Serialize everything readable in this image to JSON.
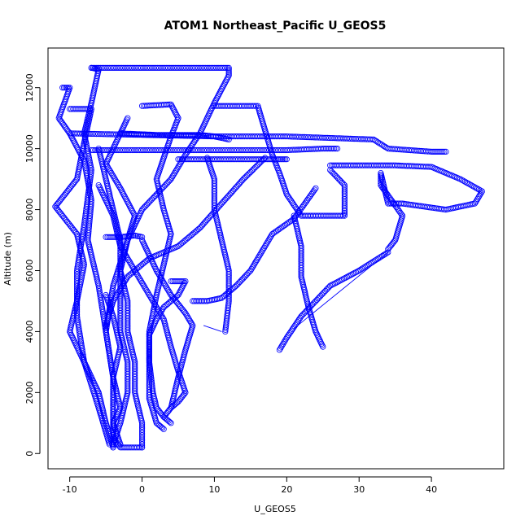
{
  "chart_data": {
    "type": "scatter",
    "title": "ATOM1 Northeast_Pacific U_GEOS5",
    "xlabel": "U_GEOS5",
    "ylabel": "Altitude (m)",
    "xlim": [
      -13,
      50
    ],
    "ylim": [
      -500,
      13300
    ],
    "xticks": [
      -10,
      0,
      10,
      20,
      30,
      40
    ],
    "yticks": [
      0,
      2000,
      4000,
      6000,
      8000,
      10000,
      12000
    ],
    "grid": false,
    "legend": "none",
    "marker": "open-circle",
    "color": "#0000ff",
    "series": [
      {
        "points": [
          [
            -11,
            12000
          ],
          [
            -10,
            12000
          ],
          [
            -11.5,
            11000
          ],
          [
            -10,
            10500
          ],
          [
            -8,
            9600
          ],
          [
            -7,
            8300
          ],
          [
            -7.5,
            7000
          ],
          [
            -6,
            5500
          ],
          [
            -5,
            4000
          ],
          [
            -4,
            2500
          ],
          [
            -4,
            1000
          ],
          [
            -4,
            200
          ]
        ]
      },
      {
        "points": [
          [
            -7,
            12650
          ],
          [
            -6,
            12600
          ],
          [
            -7,
            11500
          ],
          [
            -8,
            10500
          ],
          [
            -7,
            9300
          ],
          [
            -8,
            7500
          ],
          [
            -9,
            6000
          ],
          [
            -9,
            4500
          ],
          [
            -8,
            3000
          ],
          [
            -6,
            1500
          ],
          [
            -4.5,
            300
          ]
        ]
      },
      {
        "points": [
          [
            -7,
            12650
          ],
          [
            12,
            12650
          ],
          [
            12,
            12400
          ],
          [
            10,
            11500
          ],
          [
            8,
            10500
          ],
          [
            6,
            9800
          ],
          [
            4,
            9000
          ],
          [
            0,
            8000
          ],
          [
            -2,
            7000
          ],
          [
            -4,
            5500
          ],
          [
            -5,
            4000
          ],
          [
            -4,
            2500
          ],
          [
            -4,
            1000
          ],
          [
            -3,
            300
          ]
        ]
      },
      {
        "points": [
          [
            -10,
            11300
          ],
          [
            -7,
            11300
          ],
          [
            -8,
            10200
          ],
          [
            -9,
            9000
          ],
          [
            -11,
            8400
          ],
          [
            -12,
            8100
          ],
          [
            -9,
            7200
          ],
          [
            -8,
            6200
          ],
          [
            -9,
            5000
          ],
          [
            -10,
            4000
          ],
          [
            -8,
            3000
          ],
          [
            -6,
            2000
          ],
          [
            -5,
            1000
          ],
          [
            -4,
            200
          ]
        ]
      },
      {
        "points": [
          [
            -10,
            10500
          ],
          [
            10,
            10400
          ],
          [
            20,
            10400
          ],
          [
            32,
            10300
          ],
          [
            34,
            10000
          ],
          [
            40,
            9900
          ],
          [
            42,
            9900
          ]
        ]
      },
      {
        "points": [
          [
            -7,
            9950
          ],
          [
            10,
            9950
          ],
          [
            20,
            9950
          ],
          [
            25,
            10000
          ],
          [
            27,
            10000
          ]
        ]
      },
      {
        "points": [
          [
            5,
            9650
          ],
          [
            15,
            9650
          ],
          [
            19,
            9650
          ],
          [
            20,
            9650
          ]
        ]
      },
      {
        "points": [
          [
            -3,
            10500
          ],
          [
            2,
            10450
          ],
          [
            8,
            10450
          ],
          [
            10,
            10400
          ],
          [
            12,
            10300
          ]
        ]
      },
      {
        "points": [
          [
            26,
            9450
          ],
          [
            35,
            9450
          ],
          [
            40,
            9400
          ],
          [
            44,
            9000
          ],
          [
            47,
            8600
          ],
          [
            46,
            8200
          ],
          [
            42,
            8000
          ],
          [
            36,
            8200
          ],
          [
            34,
            8200
          ],
          [
            33,
            9200
          ],
          [
            33,
            8800
          ],
          [
            36,
            7800
          ],
          [
            35,
            7000
          ],
          [
            34,
            6700
          ]
        ]
      },
      {
        "points": [
          [
            34,
            6600
          ],
          [
            30,
            6000
          ],
          [
            26,
            5500
          ],
          [
            22,
            4500
          ],
          [
            20,
            3800
          ],
          [
            19,
            3400
          ]
        ]
      },
      {
        "points": [
          [
            10,
            11400
          ],
          [
            16,
            11400
          ],
          [
            17,
            10600
          ],
          [
            18,
            9800
          ],
          [
            19,
            9200
          ],
          [
            20,
            8500
          ],
          [
            22,
            7800
          ],
          [
            25,
            7800
          ],
          [
            28,
            7800
          ],
          [
            28,
            8000
          ],
          [
            28,
            8800
          ],
          [
            26,
            9300
          ]
        ]
      },
      {
        "points": [
          [
            0,
            11400
          ],
          [
            4,
            11450
          ],
          [
            5,
            11000
          ],
          [
            4,
            10400
          ],
          [
            3,
            9700
          ],
          [
            2,
            9000
          ],
          [
            3,
            8000
          ],
          [
            4,
            7200
          ],
          [
            3,
            6200
          ],
          [
            2,
            5200
          ],
          [
            1,
            4000
          ],
          [
            1,
            2800
          ],
          [
            1,
            1800
          ],
          [
            2,
            1000
          ],
          [
            3,
            800
          ]
        ]
      },
      {
        "points": [
          [
            17,
            9700
          ],
          [
            14,
            9000
          ],
          [
            11,
            8200
          ],
          [
            8,
            7400
          ],
          [
            5,
            6800
          ],
          [
            1,
            6400
          ],
          [
            -2,
            5800
          ],
          [
            -4,
            5000
          ],
          [
            -5,
            4200
          ]
        ]
      },
      {
        "points": [
          [
            -2,
            11000
          ],
          [
            -4,
            10000
          ],
          [
            -5,
            9500
          ],
          [
            -3,
            8700
          ],
          [
            -1,
            7800
          ],
          [
            -2,
            7000
          ],
          [
            -3,
            6000
          ],
          [
            -3,
            5000
          ],
          [
            -3,
            4000
          ],
          [
            -2,
            3000
          ],
          [
            -2,
            2000
          ],
          [
            -3,
            1000
          ],
          [
            -4,
            300
          ]
        ]
      },
      {
        "points": [
          [
            0,
            7000
          ],
          [
            2,
            6000
          ],
          [
            4,
            5200
          ],
          [
            6,
            4600
          ],
          [
            7,
            4200
          ],
          [
            6,
            3400
          ],
          [
            5,
            2500
          ],
          [
            4,
            1500
          ],
          [
            3,
            1200
          ],
          [
            4,
            1000
          ]
        ]
      },
      {
        "points": [
          [
            7,
            5000
          ],
          [
            9,
            5000
          ],
          [
            11,
            5100
          ],
          [
            13,
            5500
          ],
          [
            15,
            6000
          ],
          [
            18,
            7200
          ],
          [
            21,
            7700
          ],
          [
            24,
            8700
          ]
        ]
      },
      {
        "points": [
          [
            21,
            7800
          ],
          [
            22,
            6800
          ],
          [
            22,
            5800
          ],
          [
            23,
            4800
          ],
          [
            24,
            4000
          ],
          [
            25,
            3500
          ]
        ]
      },
      {
        "points": [
          [
            9,
            9700
          ],
          [
            10,
            9000
          ],
          [
            10,
            8000
          ],
          [
            11,
            7000
          ],
          [
            12,
            6000
          ],
          [
            12,
            5000
          ],
          [
            11.5,
            4000
          ]
        ]
      },
      {
        "points": [
          [
            -6,
            10000
          ],
          [
            -5,
            9000
          ],
          [
            -4,
            8000
          ],
          [
            -3,
            7000
          ],
          [
            -3,
            6000
          ],
          [
            -2,
            5000
          ],
          [
            -2,
            4000
          ],
          [
            -1,
            3000
          ],
          [
            -1,
            2000
          ],
          [
            0,
            1000
          ],
          [
            0,
            200
          ]
        ]
      },
      {
        "points": [
          [
            0,
            200
          ],
          [
            -3,
            200
          ],
          [
            -4,
            500
          ],
          [
            -4,
            1000
          ],
          [
            -3,
            1500
          ],
          [
            -4,
            2500
          ],
          [
            -3,
            3500
          ],
          [
            -4,
            4500
          ],
          [
            -5,
            5200
          ]
        ]
      },
      {
        "points": [
          [
            -5,
            7100
          ],
          [
            -3,
            7100
          ],
          [
            -1,
            7150
          ],
          [
            0,
            7100
          ]
        ]
      },
      {
        "points": [
          [
            4,
            5650
          ],
          [
            6,
            5650
          ],
          [
            5,
            5200
          ],
          [
            3,
            4800
          ],
          [
            2,
            4400
          ],
          [
            1,
            3900
          ],
          [
            1,
            3000
          ],
          [
            1.5,
            2000
          ],
          [
            2,
            1500
          ],
          [
            3,
            1200
          ]
        ]
      },
      {
        "points": [
          [
            -6,
            8800
          ],
          [
            -4,
            7800
          ],
          [
            -3,
            6800
          ],
          [
            -1,
            6000
          ],
          [
            1,
            5200
          ],
          [
            3,
            4400
          ],
          [
            4,
            3500
          ],
          [
            5,
            2700
          ],
          [
            6,
            2000
          ],
          [
            5,
            1700
          ],
          [
            4,
            1500
          ]
        ]
      }
    ],
    "lines": [
      {
        "points": [
          [
            34,
            6600
          ],
          [
            21,
            4100
          ]
        ]
      },
      {
        "points": [
          [
            11,
            4000
          ],
          [
            8.5,
            4200
          ]
        ]
      }
    ]
  }
}
